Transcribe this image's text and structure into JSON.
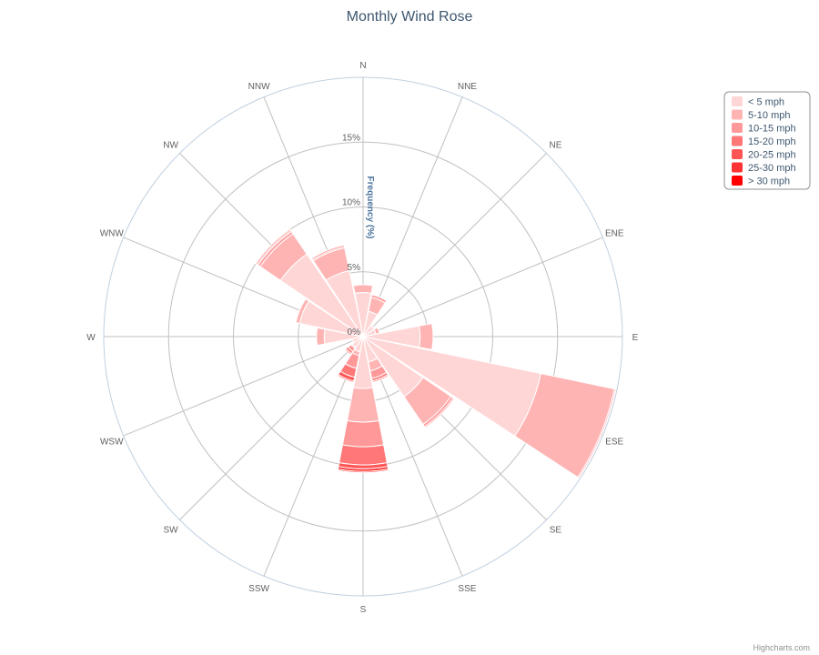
{
  "chart_data": {
    "type": "bar",
    "subtype": "polar-stacked-column",
    "title": "Monthly Wind Rose",
    "ylabel": "Frequency (%)",
    "credits": "Highcharts.com",
    "categories": [
      "N",
      "NNE",
      "NE",
      "ENE",
      "E",
      "ESE",
      "SE",
      "SSE",
      "S",
      "SSW",
      "SW",
      "WSW",
      "W",
      "WNW",
      "NW",
      "NNW"
    ],
    "ylim": [
      0,
      20
    ],
    "yticks": [
      {
        "value": 0,
        "label": "0%"
      },
      {
        "value": 5,
        "label": "5%"
      },
      {
        "value": 10,
        "label": "10%"
      },
      {
        "value": 15,
        "label": "15%"
      }
    ],
    "legend_position": "top-right",
    "series": [
      {
        "name": "< 5 mph",
        "color": "#ffd6d6",
        "values": [
          3.4,
          2.0,
          1.0,
          1.0,
          4.4,
          14.0,
          5.6,
          2.0,
          4.0,
          1.2,
          1.0,
          0.8,
          3.0,
          5.0,
          7.7,
          5.2
        ]
      },
      {
        "name": "5-10 mph",
        "color": "#ffb4b4",
        "values": [
          0.6,
          1.1,
          0.1,
          0.3,
          1.0,
          5.8,
          2.6,
          0.7,
          2.6,
          0.3,
          0.1,
          0.1,
          0.6,
          0.3,
          1.9,
          1.8
        ]
      },
      {
        "name": "10-15 mph",
        "color": "#ff9999",
        "values": [
          0.0,
          0.2,
          0.0,
          0.0,
          0.0,
          0.1,
          0.2,
          0.6,
          1.9,
          1.0,
          0.3,
          0.0,
          0.0,
          0.0,
          0.2,
          0.1
        ]
      },
      {
        "name": "15-20 mph",
        "color": "#ff7777",
        "values": [
          0.0,
          0.0,
          0.0,
          0.0,
          0.0,
          0.0,
          0.1,
          0.2,
          1.4,
          0.7,
          0.2,
          0.0,
          0.0,
          0.0,
          0.1,
          0.0
        ]
      },
      {
        "name": "20-25 mph",
        "color": "#ff5555",
        "values": [
          0.0,
          0.0,
          0.0,
          0.0,
          0.0,
          0.0,
          0.0,
          0.1,
          0.3,
          0.3,
          0.1,
          0.0,
          0.0,
          0.0,
          0.1,
          0.1
        ]
      },
      {
        "name": "25-30 mph",
        "color": "#ff3333",
        "values": [
          0.0,
          0.0,
          0.0,
          0.0,
          0.0,
          0.0,
          0.0,
          0.0,
          0.2,
          0.1,
          0.0,
          0.0,
          0.0,
          0.0,
          0.0,
          0.0
        ]
      },
      {
        "name": "> 30 mph",
        "color": "#ff0000",
        "values": [
          0.0,
          0.0,
          0.0,
          0.0,
          0.0,
          0.0,
          0.0,
          0.0,
          0.1,
          0.0,
          0.0,
          0.0,
          0.0,
          0.0,
          0.0,
          0.0
        ]
      }
    ]
  }
}
